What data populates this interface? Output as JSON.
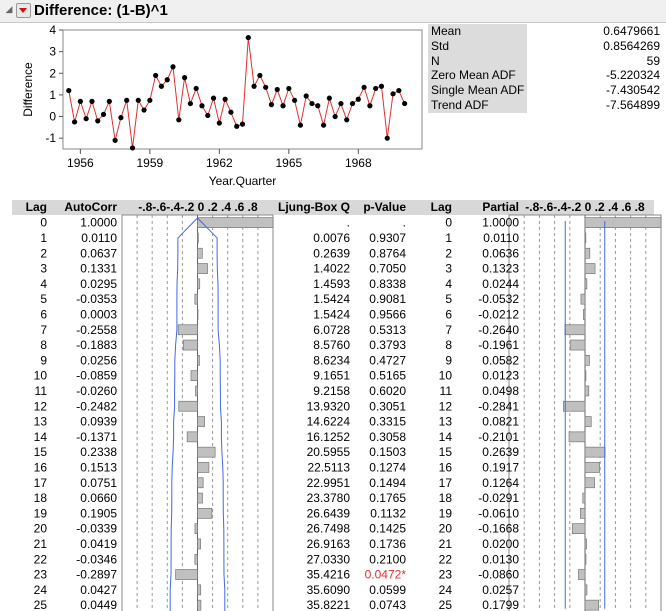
{
  "header": {
    "title": "Difference: (1-B)^1",
    "disclosure_icon": "disclosure-triangle-icon",
    "menu_icon": "red-triangle-menu-icon"
  },
  "colors": {
    "series_line": "#e03030",
    "marker": "#000000",
    "bar": "#c0c0c0",
    "confidence_line": "#4169e1",
    "significant_text": "#e03030"
  },
  "stats": [
    {
      "label": "Mean",
      "value": "0.6479661"
    },
    {
      "label": "Std",
      "value": "0.8564269"
    },
    {
      "label": "N",
      "value": "59"
    },
    {
      "label": "Zero Mean ADF",
      "value": "-5.220324"
    },
    {
      "label": "Single Mean ADF",
      "value": "-7.430542"
    },
    {
      "label": "Trend ADF",
      "value": "-7.564899"
    }
  ],
  "chart_data": [
    {
      "type": "line",
      "xlabel": "Year.Quarter",
      "ylabel": "Difference",
      "xlim": [
        1955.25,
        1970.75
      ],
      "ylim": [
        -1.5,
        4
      ],
      "xticks": [
        1956,
        1959,
        1962,
        1965,
        1968
      ],
      "xtick_labels": [
        "1956",
        "1959",
        "1962",
        "1965",
        "1968"
      ],
      "yticks": [
        -1,
        0,
        1,
        2,
        3,
        4
      ],
      "ytick_labels": [
        "-1",
        "0",
        "1",
        "2",
        "3",
        "4"
      ],
      "x": [
        1955.5,
        1955.75,
        1956.0,
        1956.25,
        1956.5,
        1956.75,
        1957.0,
        1957.25,
        1957.5,
        1957.75,
        1958.0,
        1958.25,
        1958.5,
        1958.75,
        1959.0,
        1959.25,
        1959.5,
        1959.75,
        1960.0,
        1960.25,
        1960.5,
        1960.75,
        1961.0,
        1961.25,
        1961.5,
        1961.75,
        1962.0,
        1962.25,
        1962.5,
        1962.75,
        1963.0,
        1963.25,
        1963.5,
        1963.75,
        1964.0,
        1964.25,
        1964.5,
        1964.75,
        1965.0,
        1965.25,
        1965.5,
        1965.75,
        1966.0,
        1966.25,
        1966.5,
        1966.75,
        1967.0,
        1967.25,
        1967.5,
        1967.75,
        1968.0,
        1968.25,
        1968.5,
        1968.75,
        1969.0,
        1969.25,
        1969.5,
        1969.75,
        1970.0
      ],
      "y": [
        1.2,
        -0.25,
        0.7,
        -0.1,
        0.7,
        -0.2,
        0.1,
        0.7,
        -1.1,
        -0.05,
        0.75,
        -1.45,
        0.75,
        0.3,
        0.75,
        1.9,
        1.4,
        1.7,
        2.3,
        -0.15,
        1.8,
        0.6,
        1.3,
        0.5,
        0.05,
        0.85,
        -0.3,
        0.8,
        0.2,
        -0.45,
        -0.35,
        3.65,
        1.4,
        1.9,
        1.35,
        0.55,
        1.25,
        0.5,
        1.3,
        0.75,
        -0.4,
        0.95,
        0.6,
        0.5,
        -0.4,
        0.85,
        0.0,
        0.6,
        -0.15,
        0.6,
        0.8,
        1.35,
        0.5,
        1.3,
        1.4,
        -1.0,
        1.05,
        1.2,
        0.6
      ]
    },
    {
      "type": "table",
      "columns": [
        "Lag",
        "AutoCorr",
        "-.8-.6-.4-.2 0 .2 .4 .6 .8",
        "Ljung-Box Q",
        "p-Value"
      ],
      "lags": [
        "0",
        "1",
        "2",
        "3",
        "4",
        "5",
        "6",
        "7",
        "8",
        "9",
        "10",
        "11",
        "12",
        "13",
        "14",
        "15",
        "16",
        "17",
        "18",
        "19",
        "20",
        "21",
        "22",
        "23",
        "24",
        "25"
      ],
      "autocorr_values": [
        1.0,
        0.011,
        0.0637,
        0.1331,
        0.0295,
        -0.0353,
        0.0003,
        -0.2558,
        -0.1883,
        0.0256,
        -0.0859,
        -0.026,
        -0.2482,
        0.0939,
        -0.1371,
        0.2338,
        0.1513,
        0.0751,
        0.066,
        0.1905,
        -0.0339,
        0.0419,
        -0.0346,
        -0.2897,
        0.0427,
        0.0449
      ],
      "autocorr_text": [
        "1.0000",
        "0.0110",
        "0.0637",
        "0.1331",
        "0.0295",
        "-0.0353",
        "0.0003",
        "-0.2558",
        "-0.1883",
        "0.0256",
        "-0.0859",
        "-0.0260",
        "-0.2482",
        "0.0939",
        "-0.1371",
        "0.2338",
        "0.1513",
        "0.0751",
        "0.0660",
        "0.1905",
        "-0.0339",
        "0.0419",
        "-0.0346",
        "-0.2897",
        "0.0427",
        "0.0449"
      ],
      "ljung_box_q": [
        ".",
        "0.0076",
        "0.2639",
        "1.4022",
        "1.4593",
        "1.5424",
        "1.5424",
        "6.0728",
        "8.5760",
        "8.6234",
        "9.1651",
        "9.2158",
        "13.9320",
        "14.6224",
        "16.1252",
        "20.5955",
        "22.5113",
        "22.9951",
        "23.3780",
        "26.6439",
        "26.7498",
        "26.9163",
        "27.0330",
        "35.4216",
        "35.6090",
        "35.8221"
      ],
      "p_value": [
        ".",
        "0.9307",
        "0.8764",
        "0.7050",
        "0.8338",
        "0.9081",
        "0.9566",
        "0.5313",
        "0.3793",
        "0.4727",
        "0.5165",
        "0.6020",
        "0.3051",
        "0.3315",
        "0.3058",
        "0.1503",
        "0.1274",
        "0.1494",
        "0.1765",
        "0.1132",
        "0.1425",
        "0.1736",
        "0.2100",
        "0.0472*",
        "0.0599",
        "0.0743"
      ],
      "p_value_significant": [
        false,
        false,
        false,
        false,
        false,
        false,
        false,
        false,
        false,
        false,
        false,
        false,
        false,
        false,
        false,
        false,
        false,
        false,
        false,
        false,
        false,
        false,
        false,
        true,
        false,
        false
      ],
      "confidence_bound": [
        0,
        0.26,
        0.26,
        0.262,
        0.272,
        0.273,
        0.273,
        0.273,
        0.29,
        0.3,
        0.3,
        0.303,
        0.303,
        0.316,
        0.317,
        0.323,
        0.335,
        0.34,
        0.341,
        0.342,
        0.349,
        0.35,
        0.35,
        0.351,
        0.361,
        0.362
      ],
      "axis_ticks": [
        -0.8,
        -0.6,
        -0.4,
        -0.2,
        0,
        0.2,
        0.4,
        0.6,
        0.8
      ]
    },
    {
      "type": "table",
      "columns": [
        "Lag",
        "Partial",
        "-.8-.6-.4-.2 0 .2 .4 .6 .8"
      ],
      "lags": [
        "0",
        "1",
        "2",
        "3",
        "4",
        "5",
        "6",
        "7",
        "8",
        "9",
        "10",
        "11",
        "12",
        "13",
        "14",
        "15",
        "16",
        "17",
        "18",
        "19",
        "20",
        "21",
        "22",
        "23",
        "24",
        "25"
      ],
      "partial_values": [
        1.0,
        0.011,
        0.0636,
        0.1323,
        0.0244,
        -0.0532,
        -0.0212,
        -0.264,
        -0.1961,
        0.0582,
        0.0123,
        0.0498,
        -0.2841,
        0.0821,
        -0.2101,
        0.2639,
        0.1917,
        0.1264,
        -0.0291,
        -0.061,
        -0.1668,
        0.02,
        0.013,
        -0.086,
        0.0257,
        0.1799
      ],
      "partial_text": [
        "1.0000",
        "0.0110",
        "0.0636",
        "0.1323",
        "0.0244",
        "-0.0532",
        "-0.0212",
        "-0.2640",
        "-0.1961",
        "0.0582",
        "0.0123",
        "0.0498",
        "-0.2841",
        "0.0821",
        "-0.2101",
        "0.2639",
        "0.1917",
        "0.1264",
        "-0.0291",
        "-0.0610",
        "-0.1668",
        "0.0200",
        "0.0130",
        "-0.0860",
        "0.0257",
        "0.1799"
      ],
      "confidence_bound": 0.26,
      "axis_ticks": [
        -0.8,
        -0.6,
        -0.4,
        -0.2,
        0,
        0.2,
        0.4,
        0.6,
        0.8
      ]
    }
  ]
}
